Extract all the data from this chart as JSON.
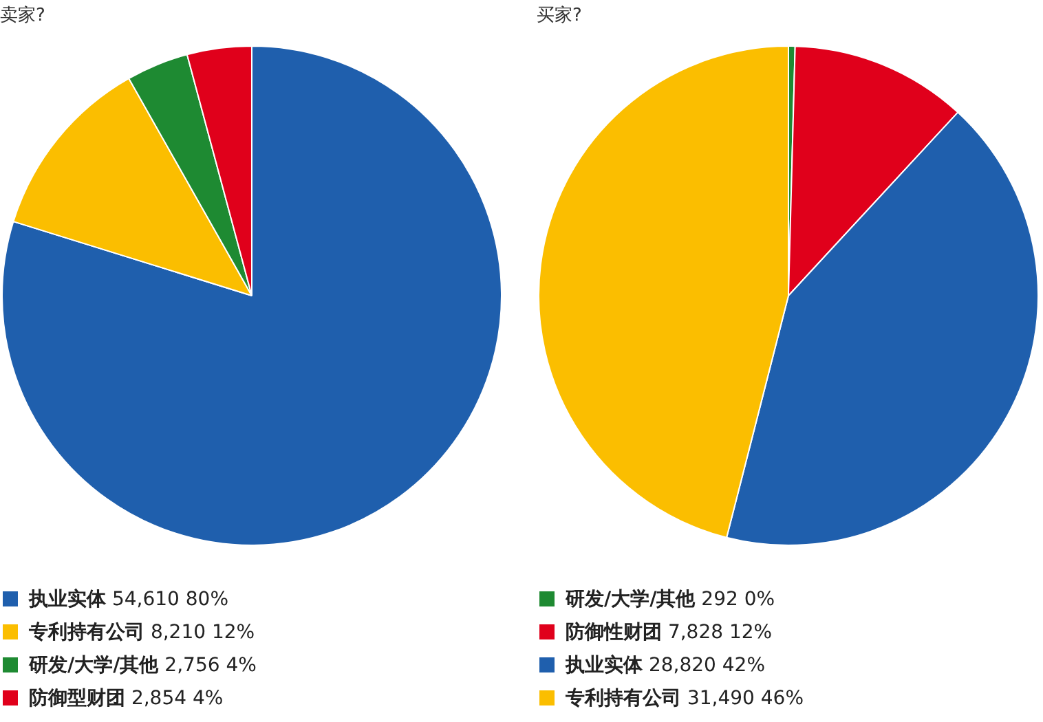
{
  "chart_data": [
    {
      "type": "pie",
      "title": "卖家?",
      "categories": [
        "执业实体",
        "专利持有公司",
        "研发/大学/其他",
        "防御型财团"
      ],
      "values": [
        54610,
        8210,
        2756,
        2854
      ],
      "colors": [
        "#1f5fad",
        "#fbbe00",
        "#1e8a32",
        "#e0001b"
      ],
      "value_labels": [
        "54,610 80%",
        "8,210 12%",
        "2,756 4%",
        "2,854 4%"
      ],
      "legend": "bottom"
    },
    {
      "type": "pie",
      "title": "买家?",
      "categories": [
        "研发/大学/其他",
        "防御性财团",
        "执业实体",
        "专利持有公司"
      ],
      "values": [
        292,
        7828,
        28820,
        31490
      ],
      "colors": [
        "#1e8a32",
        "#e0001b",
        "#1f5fad",
        "#fbbe00"
      ],
      "value_labels": [
        "292 0%",
        "7,828 12%",
        "28,820 42%",
        "31,490 46%"
      ],
      "legend": "bottom"
    }
  ]
}
